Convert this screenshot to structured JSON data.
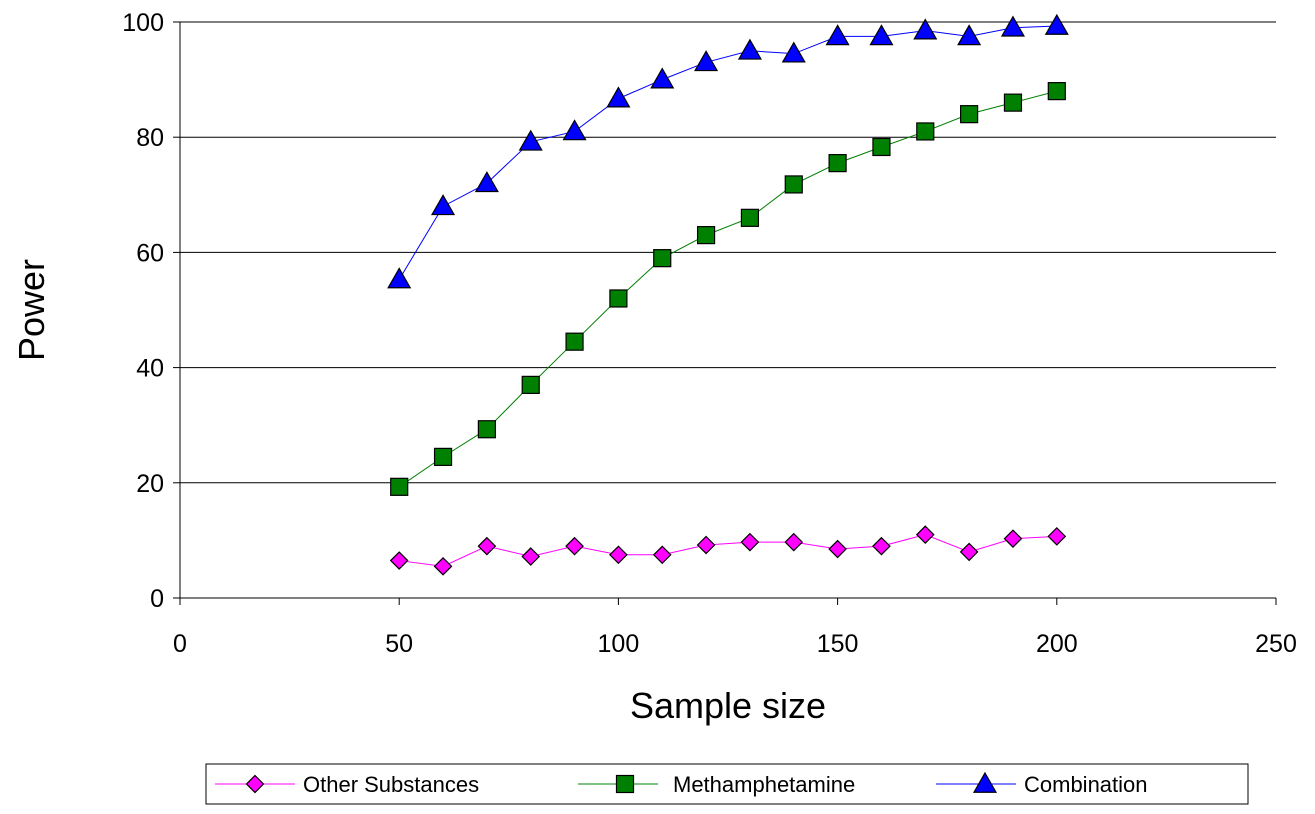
{
  "chart_data": {
    "type": "line",
    "title": "",
    "xlabel": "Sample size",
    "ylabel": "Power",
    "xlim": [
      0,
      250
    ],
    "ylim": [
      0,
      100
    ],
    "x_ticks": [
      0,
      50,
      100,
      150,
      200,
      250
    ],
    "y_ticks": [
      0,
      20,
      40,
      60,
      80,
      100
    ],
    "grid": "horizontal",
    "legend_position": "bottom",
    "x": [
      50,
      60,
      70,
      80,
      90,
      100,
      110,
      120,
      130,
      140,
      150,
      160,
      170,
      180,
      190,
      200
    ],
    "series": [
      {
        "name": "Other Substances",
        "marker": "diamond",
        "color": "#ff00ff",
        "line_color": "#ff00ff",
        "values": [
          6.5,
          5.5,
          9,
          7.2,
          9,
          7.5,
          7.5,
          9.2,
          9.7,
          9.7,
          8.5,
          9,
          11,
          8,
          10.3,
          10.7
        ]
      },
      {
        "name": "Methamphetamine",
        "marker": "square",
        "color": "#008000",
        "line_color": "#008000",
        "values": [
          19.3,
          24.5,
          29.3,
          37,
          44.5,
          52,
          59,
          63,
          66,
          71.8,
          75.5,
          78.3,
          81,
          84,
          86,
          88
        ]
      },
      {
        "name": "Combination",
        "marker": "triangle",
        "color": "#0000ff",
        "line_color": "#0000ff",
        "values": [
          55.3,
          68,
          72,
          79.2,
          81,
          86.7,
          90,
          93,
          95,
          94.5,
          97.5,
          97.5,
          98.5,
          97.5,
          99,
          99.3
        ]
      }
    ]
  }
}
